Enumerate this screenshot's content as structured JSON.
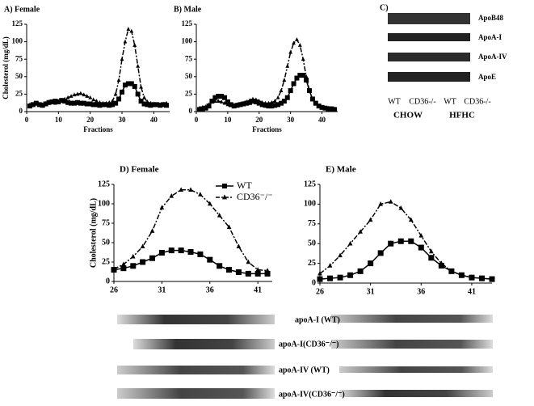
{
  "chart_data": [
    {
      "type": "line",
      "title": "A) Female",
      "x_label": "Fractions",
      "y_label": "Cholesterol (mg/dL)",
      "x": [
        1,
        2,
        3,
        4,
        5,
        6,
        7,
        8,
        9,
        10,
        11,
        12,
        13,
        14,
        15,
        16,
        17,
        18,
        19,
        20,
        21,
        22,
        23,
        24,
        25,
        26,
        27,
        28,
        29,
        30,
        31,
        32,
        33,
        34,
        35,
        36,
        37,
        38,
        39,
        40,
        41,
        42,
        43,
        44
      ],
      "xlim": [
        0,
        45
      ],
      "xticks": [
        0,
        10,
        20,
        30,
        40
      ],
      "ylim": [
        0,
        125
      ],
      "yticks": [
        0,
        25,
        50,
        75,
        100,
        125
      ],
      "series": [
        {
          "color": "#000000",
          "marker": "square",
          "line_style": "solid",
          "values": [
            8,
            10,
            12,
            10,
            9,
            11,
            13,
            14,
            15,
            14,
            16,
            15,
            13,
            12,
            12,
            13,
            12,
            12,
            11,
            11,
            10,
            10,
            9,
            10,
            10,
            9,
            10,
            12,
            18,
            28,
            38,
            40,
            40,
            36,
            25,
            15,
            11,
            10,
            9,
            10,
            10,
            9,
            10,
            9
          ]
        },
        {
          "color": "#000000",
          "marker": "triangle",
          "line_style": "dashed",
          "values": [
            10,
            10,
            11,
            9,
            10,
            12,
            14,
            13,
            12,
            14,
            16,
            18,
            20,
            22,
            24,
            25,
            26,
            24,
            22,
            20,
            17,
            15,
            13,
            12,
            12,
            13,
            15,
            25,
            45,
            75,
            100,
            118,
            115,
            95,
            65,
            35,
            20,
            14,
            12,
            11,
            10,
            10,
            11,
            12
          ]
        }
      ]
    },
    {
      "type": "line",
      "title": "B) Male",
      "x_label": "Fractions",
      "x": [
        1,
        2,
        3,
        4,
        5,
        6,
        7,
        8,
        9,
        10,
        11,
        12,
        13,
        14,
        15,
        16,
        17,
        18,
        19,
        20,
        21,
        22,
        23,
        24,
        25,
        26,
        27,
        28,
        29,
        30,
        31,
        32,
        33,
        34,
        35,
        36,
        37,
        38,
        39,
        40,
        41,
        42,
        43,
        44
      ],
      "xlim": [
        0,
        45
      ],
      "xticks": [
        0,
        10,
        20,
        30,
        40
      ],
      "ylim": [
        0,
        125
      ],
      "yticks": [
        0,
        25,
        50,
        75,
        100,
        125
      ],
      "series": [
        {
          "color": "#000000",
          "marker": "square",
          "line_style": "solid",
          "values": [
            3,
            4,
            5,
            8,
            15,
            20,
            22,
            22,
            20,
            14,
            10,
            8,
            9,
            10,
            11,
            12,
            13,
            15,
            14,
            12,
            10,
            9,
            8,
            8,
            9,
            10,
            12,
            15,
            20,
            30,
            40,
            48,
            52,
            52,
            45,
            30,
            18,
            12,
            8,
            6,
            5,
            4,
            4,
            3
          ]
        },
        {
          "color": "#000000",
          "marker": "triangle",
          "line_style": "dashed",
          "values": [
            5,
            6,
            7,
            10,
            14,
            15,
            15,
            14,
            12,
            10,
            9,
            9,
            10,
            11,
            12,
            14,
            16,
            18,
            17,
            15,
            13,
            12,
            12,
            13,
            15,
            20,
            30,
            45,
            65,
            85,
            98,
            103,
            95,
            75,
            50,
            30,
            18,
            12,
            8,
            6,
            5,
            5,
            4,
            4
          ]
        }
      ]
    },
    {
      "type": "line",
      "title": "D) Female",
      "y_label": "Cholesterol (mg/dL)",
      "x": [
        26,
        27,
        28,
        29,
        30,
        31,
        32,
        33,
        34,
        35,
        36,
        37,
        38,
        39,
        40,
        41,
        42
      ],
      "xlim": [
        26,
        42.5
      ],
      "xticks": [
        26,
        31,
        36,
        41
      ],
      "ylim": [
        0,
        125
      ],
      "yticks": [
        0,
        25,
        50,
        75,
        100,
        125
      ],
      "legend": "top-right",
      "series": [
        {
          "name": "WT",
          "color": "#000000",
          "marker": "square",
          "line_style": "solid",
          "values": [
            15,
            17,
            20,
            25,
            30,
            37,
            40,
            40,
            38,
            35,
            28,
            20,
            15,
            12,
            10,
            10,
            10
          ]
        },
        {
          "name": "CD36⁻/⁻",
          "color": "#000000",
          "marker": "triangle",
          "line_style": "dashed",
          "values": [
            16,
            22,
            32,
            45,
            65,
            95,
            110,
            118,
            118,
            112,
            100,
            85,
            70,
            45,
            25,
            15,
            14
          ]
        }
      ]
    },
    {
      "type": "line",
      "title": "E) Male",
      "x": [
        26,
        27,
        28,
        29,
        30,
        31,
        32,
        33,
        34,
        35,
        36,
        37,
        38,
        39,
        40,
        41,
        42,
        43
      ],
      "xlim": [
        26,
        43
      ],
      "xticks": [
        26,
        31,
        36,
        41
      ],
      "ylim": [
        0,
        125
      ],
      "yticks": [
        0,
        25,
        50,
        75,
        100,
        125
      ],
      "series": [
        {
          "color": "#000000",
          "marker": "square",
          "line_style": "solid",
          "values": [
            5,
            6,
            7,
            10,
            15,
            25,
            38,
            50,
            53,
            53,
            45,
            32,
            22,
            15,
            10,
            7,
            6,
            5
          ]
        },
        {
          "color": "#000000",
          "marker": "triangle",
          "line_style": "dashed",
          "values": [
            12,
            22,
            35,
            50,
            65,
            80,
            100,
            103,
            95,
            80,
            60,
            40,
            25,
            15,
            10,
            7,
            6,
            5
          ]
        }
      ]
    }
  ],
  "blot_c": {
    "title": "C)",
    "bands": [
      "ApoB48",
      "ApoA-I",
      "ApoA-IV",
      "ApoE"
    ],
    "lanes": [
      "WT",
      "CD36-/-",
      "WT",
      "CD36-/-"
    ],
    "groups": [
      "CHOW",
      "HFHC"
    ]
  },
  "blot_de": {
    "rows": [
      "apoA-I (WT)",
      "apoA-I(CD36⁻/⁻)",
      "apoA-IV (WT)",
      "apoA-IV(CD36⁻/⁻)"
    ]
  }
}
